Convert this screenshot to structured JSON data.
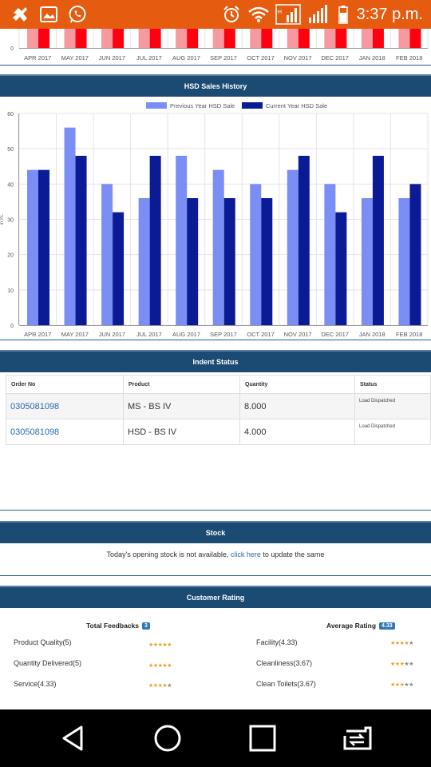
{
  "status_bar": {
    "time": "3:37 p.m.",
    "left_icons": [
      "vpn-bird-icon",
      "gallery-icon",
      "whatsapp-icon"
    ],
    "right_icons": [
      "alarm-icon",
      "wifi-icon",
      "signal-icon",
      "signal-2g-icon",
      "battery-icon"
    ]
  },
  "top_chart": {
    "categories": [
      "APR 2017",
      "MAY 2017",
      "JUN 2017",
      "JUL 2017",
      "AUG 2017",
      "SEP 2017",
      "OCT 2017",
      "NOV 2017",
      "DEC 2017",
      "JAN 2018",
      "FEB 2018"
    ],
    "y_tick": "0",
    "colors": {
      "previous": "#f79aa0",
      "current": "#ff0011"
    }
  },
  "hsd_chart": {
    "title": "HSD Sales History",
    "chart_data": {
      "type": "bar",
      "title": "",
      "xlabel": "",
      "ylabel": "in KL",
      "ylim": [
        0,
        60
      ],
      "yticks": [
        0,
        10,
        20,
        30,
        40,
        50,
        60
      ],
      "grid": true,
      "legend_position": "top-center",
      "categories": [
        "APR 2017",
        "MAY 2017",
        "JUN 2017",
        "JUL 2017",
        "AUG 2017",
        "SEP 2017",
        "OCT 2017",
        "NOV 2017",
        "DEC 2017",
        "JAN 2018",
        "FEB 2018"
      ],
      "series": [
        {
          "name": "Previous Year HSD Sale",
          "color": "#7b8ef5",
          "values": [
            44,
            56,
            40,
            36,
            48,
            44,
            40,
            44,
            40,
            36,
            36
          ]
        },
        {
          "name": "Current Year HSD Sale",
          "color": "#0b1b96",
          "values": [
            44,
            48,
            32,
            48,
            36,
            36,
            36,
            48,
            32,
            48,
            40
          ]
        }
      ]
    }
  },
  "indent": {
    "title": "Indent Status",
    "headers": [
      "Order No",
      "Product",
      "Quantity",
      "Status"
    ],
    "rows": [
      {
        "order": "0305081098",
        "product": "MS - BS IV",
        "quantity": "8.000",
        "status": "Load Dispatched"
      },
      {
        "order": "0305081098",
        "product": "HSD - BS IV",
        "quantity": "4.000",
        "status": "Load Dispatched"
      }
    ]
  },
  "stock": {
    "title": "Stock",
    "text_before": "Today's opening stock is not available, ",
    "link_text": "click here",
    "text_after": " to update the same"
  },
  "rating": {
    "title": "Customer Rating",
    "total_feedbacks_label": "Total Feedbacks",
    "total_feedbacks_count": "3",
    "average_rating_label": "Average Rating",
    "average_rating_value": "4.33",
    "left_items": [
      {
        "label": "Product Quality(5)",
        "stars": 5
      },
      {
        "label": "Quantity Delivered(5)",
        "stars": 5
      },
      {
        "label": "Service(4.33)",
        "stars": 4
      }
    ],
    "right_items": [
      {
        "label": "Facility(4.33)",
        "stars": 4
      },
      {
        "label": "Cleanliness(3.67)",
        "stars": 3
      },
      {
        "label": "Clean Toilets(3.67)",
        "stars": 3
      }
    ],
    "star_on_color": "#e8a028",
    "star_off_color": "#888888"
  },
  "nav_bar": {
    "buttons": [
      "back-icon",
      "home-icon",
      "recents-icon",
      "screen-mirror-icon"
    ]
  }
}
